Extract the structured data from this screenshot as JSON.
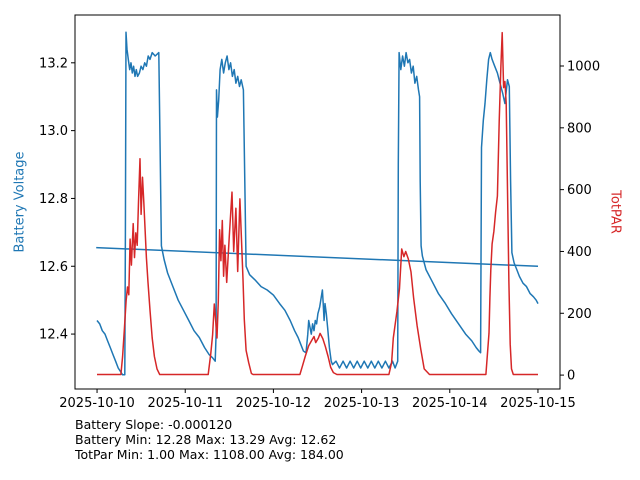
{
  "footer": {
    "lines": [
      "Battery Slope: -0.000120",
      "Battery Min: 12.28 Max: 13.29 Avg: 12.62",
      "TotPar Min: 1.00 Max: 1108.00 Avg: 184.00"
    ]
  },
  "chart_data": {
    "type": "line",
    "background": "#ffffff",
    "stats": {
      "battery_slope": -0.00012,
      "battery_min": 12.28,
      "battery_max": 13.29,
      "battery_avg": 12.62,
      "totpar_min": 1.0,
      "totpar_max": 1108.0,
      "totpar_avg": 184.0
    },
    "x_axis": {
      "tick_values": [
        0,
        1,
        2,
        3,
        4,
        5
      ],
      "tick_labels": [
        "2025-10-10",
        "2025-10-11",
        "2025-10-12",
        "2025-10-13",
        "2025-10-14",
        "2025-10-15"
      ],
      "range": [
        -0.25,
        5.25
      ]
    },
    "left_axis": {
      "label": "Battery Voltage",
      "color": "#1f77b4",
      "tick_values": [
        12.4,
        12.6,
        12.8,
        13.0,
        13.2
      ],
      "tick_labels": [
        "12.4",
        "12.6",
        "12.8",
        "13.0",
        "13.2"
      ],
      "range": [
        12.238,
        13.341
      ]
    },
    "right_axis": {
      "label": "TotPAR",
      "color": "#d62728",
      "tick_values": [
        0,
        200,
        400,
        600,
        800,
        1000
      ],
      "tick_labels": [
        "0",
        "200",
        "400",
        "600",
        "800",
        "1000"
      ],
      "range": [
        -45,
        1165
      ]
    },
    "series": [
      {
        "name": "battery-voltage",
        "axis": "left",
        "color": "#1f77b4",
        "width": 1.5,
        "points": [
          [
            0.0,
            12.44
          ],
          [
            0.03,
            12.43
          ],
          [
            0.06,
            12.41
          ],
          [
            0.09,
            12.4
          ],
          [
            0.12,
            12.38
          ],
          [
            0.15,
            12.36
          ],
          [
            0.18,
            12.34
          ],
          [
            0.21,
            12.32
          ],
          [
            0.24,
            12.3
          ],
          [
            0.265,
            12.29
          ],
          [
            0.29,
            12.28
          ],
          [
            0.315,
            12.28
          ],
          [
            0.322,
            12.7
          ],
          [
            0.328,
            13.29
          ],
          [
            0.34,
            13.24
          ],
          [
            0.355,
            13.21
          ],
          [
            0.37,
            13.18
          ],
          [
            0.385,
            13.2
          ],
          [
            0.4,
            13.17
          ],
          [
            0.415,
            13.19
          ],
          [
            0.43,
            13.16
          ],
          [
            0.445,
            13.18
          ],
          [
            0.46,
            13.16
          ],
          [
            0.48,
            13.17
          ],
          [
            0.5,
            13.19
          ],
          [
            0.52,
            13.18
          ],
          [
            0.54,
            13.2
          ],
          [
            0.56,
            13.19
          ],
          [
            0.58,
            13.22
          ],
          [
            0.6,
            13.21
          ],
          [
            0.625,
            13.23
          ],
          [
            0.66,
            13.22
          ],
          [
            0.7,
            13.23
          ],
          [
            0.715,
            12.95
          ],
          [
            0.73,
            12.66
          ],
          [
            0.76,
            12.62
          ],
          [
            0.8,
            12.58
          ],
          [
            0.86,
            12.54
          ],
          [
            0.92,
            12.5
          ],
          [
            0.98,
            12.47
          ],
          [
            1.04,
            12.44
          ],
          [
            1.1,
            12.41
          ],
          [
            1.16,
            12.39
          ],
          [
            1.22,
            12.36
          ],
          [
            1.27,
            12.34
          ],
          [
            1.31,
            12.33
          ],
          [
            1.34,
            12.32
          ],
          [
            1.35,
            12.4
          ],
          [
            1.355,
            13.12
          ],
          [
            1.365,
            13.04
          ],
          [
            1.38,
            13.09
          ],
          [
            1.395,
            13.18
          ],
          [
            1.415,
            13.21
          ],
          [
            1.435,
            13.17
          ],
          [
            1.455,
            13.2
          ],
          [
            1.475,
            13.22
          ],
          [
            1.495,
            13.18
          ],
          [
            1.515,
            13.2
          ],
          [
            1.535,
            13.16
          ],
          [
            1.555,
            13.18
          ],
          [
            1.575,
            13.14
          ],
          [
            1.595,
            13.16
          ],
          [
            1.615,
            13.13
          ],
          [
            1.635,
            13.15
          ],
          [
            1.66,
            13.12
          ],
          [
            1.675,
            12.85
          ],
          [
            1.69,
            12.6
          ],
          [
            1.73,
            12.575
          ],
          [
            1.79,
            12.56
          ],
          [
            1.86,
            12.54
          ],
          [
            1.93,
            12.53
          ],
          [
            2.0,
            12.515
          ],
          [
            2.07,
            12.49
          ],
          [
            2.13,
            12.47
          ],
          [
            2.19,
            12.44
          ],
          [
            2.24,
            12.41
          ],
          [
            2.28,
            12.39
          ],
          [
            2.31,
            12.37
          ],
          [
            2.34,
            12.35
          ],
          [
            2.37,
            12.345
          ],
          [
            2.39,
            12.4
          ],
          [
            2.4,
            12.44
          ],
          [
            2.415,
            12.42
          ],
          [
            2.43,
            12.4
          ],
          [
            2.445,
            12.43
          ],
          [
            2.46,
            12.41
          ],
          [
            2.475,
            12.44
          ],
          [
            2.49,
            12.43
          ],
          [
            2.505,
            12.46
          ],
          [
            2.525,
            12.48
          ],
          [
            2.555,
            12.53
          ],
          [
            2.565,
            12.49
          ],
          [
            2.575,
            12.44
          ],
          [
            2.585,
            12.49
          ],
          [
            2.6,
            12.46
          ],
          [
            2.615,
            12.42
          ],
          [
            2.635,
            12.36
          ],
          [
            2.655,
            12.32
          ],
          [
            2.67,
            12.31
          ],
          [
            2.71,
            12.32
          ],
          [
            2.75,
            12.3
          ],
          [
            2.79,
            12.32
          ],
          [
            2.83,
            12.3
          ],
          [
            2.87,
            12.32
          ],
          [
            2.91,
            12.3
          ],
          [
            2.95,
            12.32
          ],
          [
            2.99,
            12.3
          ],
          [
            3.03,
            12.32
          ],
          [
            3.07,
            12.3
          ],
          [
            3.11,
            12.32
          ],
          [
            3.15,
            12.3
          ],
          [
            3.19,
            12.32
          ],
          [
            3.23,
            12.3
          ],
          [
            3.27,
            12.32
          ],
          [
            3.31,
            12.3
          ],
          [
            3.35,
            12.32
          ],
          [
            3.38,
            12.3
          ],
          [
            3.41,
            12.32
          ],
          [
            3.416,
            12.9
          ],
          [
            3.425,
            13.23
          ],
          [
            3.445,
            13.18
          ],
          [
            3.465,
            13.22
          ],
          [
            3.485,
            13.19
          ],
          [
            3.505,
            13.23
          ],
          [
            3.525,
            13.2
          ],
          [
            3.545,
            13.21
          ],
          [
            3.565,
            13.17
          ],
          [
            3.585,
            13.19
          ],
          [
            3.605,
            13.14
          ],
          [
            3.625,
            13.16
          ],
          [
            3.645,
            13.12
          ],
          [
            3.658,
            13.1
          ],
          [
            3.665,
            12.85
          ],
          [
            3.675,
            12.66
          ],
          [
            3.69,
            12.63
          ],
          [
            3.73,
            12.59
          ],
          [
            3.79,
            12.56
          ],
          [
            3.87,
            12.52
          ],
          [
            3.95,
            12.49
          ],
          [
            4.02,
            12.46
          ],
          [
            4.1,
            12.43
          ],
          [
            4.18,
            12.4
          ],
          [
            4.25,
            12.38
          ],
          [
            4.3,
            12.36
          ],
          [
            4.33,
            12.35
          ],
          [
            4.35,
            12.345
          ],
          [
            4.36,
            12.95
          ],
          [
            4.38,
            13.03
          ],
          [
            4.4,
            13.08
          ],
          [
            4.42,
            13.15
          ],
          [
            4.44,
            13.21
          ],
          [
            4.46,
            13.23
          ],
          [
            4.48,
            13.21
          ],
          [
            4.51,
            13.19
          ],
          [
            4.54,
            13.17
          ],
          [
            4.57,
            13.14
          ],
          [
            4.6,
            13.11
          ],
          [
            4.625,
            13.08
          ],
          [
            4.655,
            13.15
          ],
          [
            4.675,
            13.13
          ],
          [
            4.69,
            12.85
          ],
          [
            4.705,
            12.64
          ],
          [
            4.73,
            12.61
          ],
          [
            4.76,
            12.59
          ],
          [
            4.79,
            12.57
          ],
          [
            4.83,
            12.55
          ],
          [
            4.87,
            12.54
          ],
          [
            4.91,
            12.52
          ],
          [
            4.95,
            12.51
          ],
          [
            4.98,
            12.5
          ],
          [
            5.0,
            12.49
          ]
        ]
      },
      {
        "name": "battery-trend",
        "axis": "left",
        "color": "#1f77b4",
        "width": 1.5,
        "points": [
          [
            -0.01,
            12.655
          ],
          [
            5.0,
            12.6
          ]
        ]
      },
      {
        "name": "totpar",
        "axis": "right",
        "color": "#d62728",
        "width": 1.5,
        "points": [
          [
            0.0,
            2
          ],
          [
            0.27,
            2
          ],
          [
            0.29,
            60
          ],
          [
            0.31,
            150
          ],
          [
            0.33,
            240
          ],
          [
            0.345,
            285
          ],
          [
            0.36,
            260
          ],
          [
            0.375,
            440
          ],
          [
            0.39,
            356
          ],
          [
            0.41,
            490
          ],
          [
            0.425,
            380
          ],
          [
            0.44,
            460
          ],
          [
            0.455,
            420
          ],
          [
            0.47,
            560
          ],
          [
            0.487,
            700
          ],
          [
            0.5,
            520
          ],
          [
            0.515,
            640
          ],
          [
            0.53,
            560
          ],
          [
            0.545,
            470
          ],
          [
            0.56,
            380
          ],
          [
            0.578,
            300
          ],
          [
            0.6,
            210
          ],
          [
            0.625,
            120
          ],
          [
            0.65,
            60
          ],
          [
            0.68,
            20
          ],
          [
            0.71,
            2
          ],
          [
            1.26,
            2
          ],
          [
            1.29,
            70
          ],
          [
            1.31,
            130
          ],
          [
            1.33,
            230
          ],
          [
            1.345,
            180
          ],
          [
            1.36,
            120
          ],
          [
            1.375,
            240
          ],
          [
            1.39,
            470
          ],
          [
            1.405,
            370
          ],
          [
            1.42,
            500
          ],
          [
            1.435,
            320
          ],
          [
            1.45,
            420
          ],
          [
            1.47,
            300
          ],
          [
            1.5,
            450
          ],
          [
            1.53,
            592
          ],
          [
            1.55,
            400
          ],
          [
            1.575,
            540
          ],
          [
            1.595,
            335
          ],
          [
            1.62,
            570
          ],
          [
            1.64,
            420
          ],
          [
            1.655,
            310
          ],
          [
            1.67,
            180
          ],
          [
            1.69,
            80
          ],
          [
            1.72,
            40
          ],
          [
            1.75,
            5
          ],
          [
            1.77,
            2
          ],
          [
            2.3,
            2
          ],
          [
            2.33,
            30
          ],
          [
            2.36,
            60
          ],
          [
            2.4,
            95
          ],
          [
            2.43,
            110
          ],
          [
            2.46,
            125
          ],
          [
            2.48,
            105
          ],
          [
            2.51,
            120
          ],
          [
            2.53,
            135
          ],
          [
            2.56,
            118
          ],
          [
            2.59,
            92
          ],
          [
            2.62,
            60
          ],
          [
            2.65,
            25
          ],
          [
            2.68,
            8
          ],
          [
            2.72,
            2
          ],
          [
            3.31,
            2
          ],
          [
            3.34,
            40
          ],
          [
            3.36,
            120
          ],
          [
            3.4,
            205
          ],
          [
            3.43,
            280
          ],
          [
            3.455,
            408
          ],
          [
            3.48,
            383
          ],
          [
            3.5,
            400
          ],
          [
            3.53,
            376
          ],
          [
            3.56,
            334
          ],
          [
            3.59,
            250
          ],
          [
            3.63,
            160
          ],
          [
            3.67,
            85
          ],
          [
            3.71,
            20
          ],
          [
            3.77,
            2
          ],
          [
            4.41,
            2
          ],
          [
            4.43,
            80
          ],
          [
            4.445,
            136
          ],
          [
            4.455,
            250
          ],
          [
            4.465,
            340
          ],
          [
            4.48,
            424
          ],
          [
            4.5,
            466
          ],
          [
            4.52,
            527
          ],
          [
            4.54,
            579
          ],
          [
            4.56,
            820
          ],
          [
            4.58,
            1000
          ],
          [
            4.595,
            1108
          ],
          [
            4.61,
            930
          ],
          [
            4.625,
            950
          ],
          [
            4.64,
            880
          ],
          [
            4.655,
            600
          ],
          [
            4.67,
            300
          ],
          [
            4.685,
            100
          ],
          [
            4.7,
            20
          ],
          [
            4.72,
            2
          ],
          [
            5.0,
            2
          ]
        ]
      }
    ]
  }
}
